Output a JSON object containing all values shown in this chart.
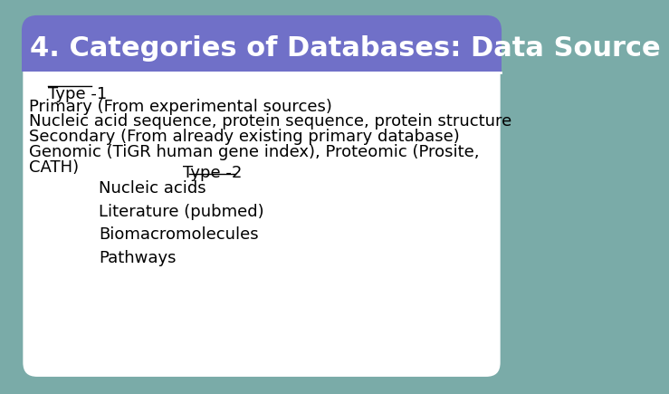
{
  "title": "4. Categories of Databases: Data Source",
  "title_bg_color": "#7070C8",
  "title_text_color": "#FFFFFF",
  "slide_bg_color": "#7AABA8",
  "content_bg_color": "#FFFFFF",
  "type1_label": "Type -1",
  "type2_label": "Type -2",
  "body_lines": [
    "Primary (From experimental sources)",
    "Nucleic acid sequence, protein sequence, protein structure",
    "Secondary (From already existing primary database)",
    "Genomic (TiGR human gene index), Proteomic (Prosite,",
    "CATH)"
  ],
  "type2_items": [
    "Nucleic acids",
    "Literature (pubmed)",
    "Biomacromolecules",
    "Pathways"
  ],
  "body_fontsize": 13,
  "title_fontsize": 22,
  "type_label_fontsize": 13,
  "type2_item_fontsize": 13
}
